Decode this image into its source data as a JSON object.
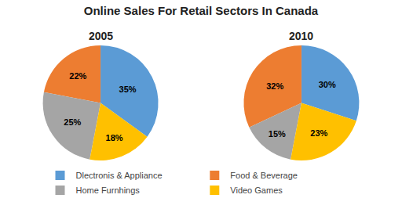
{
  "chart_data": {
    "type": "pie",
    "title": "Online Sales For Retail Sectors In Canada",
    "categories": [
      "Dlectronis & Appliance",
      "Food & Beverage",
      "Home Furnhings",
      "Video Games"
    ],
    "colors": [
      "#5B9BD5",
      "#ED7D31",
      "#A5A5A5",
      "#FFC000"
    ],
    "series": [
      {
        "name": "2005",
        "values": [
          35,
          22,
          25,
          18
        ],
        "value_labels": [
          "35%",
          "22%",
          "25%",
          "18%"
        ]
      },
      {
        "name": "2010",
        "values": [
          30,
          32,
          15,
          23
        ],
        "value_labels": [
          "30%",
          "32%",
          "15%",
          "23%"
        ]
      }
    ],
    "data_labels": true,
    "legend": "bottom"
  }
}
